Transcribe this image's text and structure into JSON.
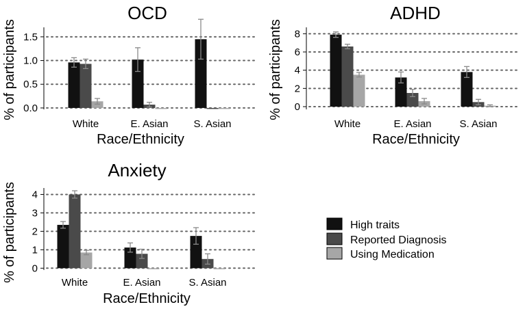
{
  "colors": {
    "High traits": "#111111",
    "Reported Diagnosis": "#4a4a4a",
    "Using Medication": "#a6a6a6",
    "grid": "#666666",
    "error_bar": "#8a8a8a"
  },
  "legend": [
    "High traits",
    "Reported Diagnosis",
    "Using Medication"
  ],
  "chart_data": [
    {
      "id": "ocd",
      "type": "bar",
      "title": "OCD",
      "xlabel": "Race/Ethnicity",
      "ylabel": "% of participants",
      "categories": [
        "White",
        "E. Asian",
        "S. Asian"
      ],
      "ylim": [
        -0.03,
        1.7
      ],
      "yticks": [
        0.0,
        0.5,
        1.0,
        1.5
      ],
      "ytick_labels": [
        "0.0",
        "0.5",
        "1.0",
        "1.5"
      ],
      "series": [
        {
          "name": "High traits",
          "values": [
            0.96,
            1.02,
            1.45
          ],
          "errors": [
            0.1,
            0.25,
            0.42
          ]
        },
        {
          "name": "Reported Diagnosis",
          "values": [
            0.93,
            0.07,
            0.0
          ],
          "errors": [
            0.1,
            0.05,
            0.0
          ]
        },
        {
          "name": "Using Medication",
          "values": [
            0.14,
            0.0,
            0.0
          ],
          "errors": [
            0.06,
            0.0,
            0.0
          ]
        }
      ]
    },
    {
      "id": "adhd",
      "type": "bar",
      "title": "ADHD",
      "xlabel": "Race/Ethnicity",
      "ylabel": "% of participants",
      "categories": [
        "White",
        "E. Asian",
        "S. Asian"
      ],
      "ylim": [
        -0.3,
        8.7
      ],
      "yticks": [
        0,
        2,
        4,
        6,
        8
      ],
      "ytick_labels": [
        "0",
        "2",
        "4",
        "6",
        "8"
      ],
      "series": [
        {
          "name": "High traits",
          "values": [
            7.9,
            3.2,
            3.8
          ],
          "errors": [
            0.3,
            0.6,
            0.6
          ]
        },
        {
          "name": "Reported Diagnosis",
          "values": [
            6.6,
            1.5,
            0.5
          ],
          "errors": [
            0.25,
            0.4,
            0.3
          ]
        },
        {
          "name": "Using Medication",
          "values": [
            3.5,
            0.6,
            0.1
          ],
          "errors": [
            0.25,
            0.3,
            0.1
          ]
        }
      ]
    },
    {
      "id": "anxiety",
      "type": "bar",
      "title": "Anxiety",
      "xlabel": "Race/Ethnicity",
      "ylabel": "% of participants",
      "categories": [
        "White",
        "E. Asian",
        "S. Asian"
      ],
      "ylim": [
        -0.1,
        4.35
      ],
      "yticks": [
        0,
        1,
        2,
        3,
        4
      ],
      "ytick_labels": [
        "0",
        "1",
        "2",
        "3",
        "4"
      ],
      "series": [
        {
          "name": "High traits",
          "values": [
            2.35,
            1.12,
            1.75
          ],
          "errors": [
            0.18,
            0.25,
            0.45
          ]
        },
        {
          "name": "Reported Diagnosis",
          "values": [
            4.0,
            0.78,
            0.5
          ],
          "errors": [
            0.2,
            0.25,
            0.28
          ]
        },
        {
          "name": "Using Medication",
          "values": [
            0.85,
            0.0,
            0.0
          ],
          "errors": [
            0.12,
            0.0,
            0.0
          ]
        }
      ]
    }
  ]
}
